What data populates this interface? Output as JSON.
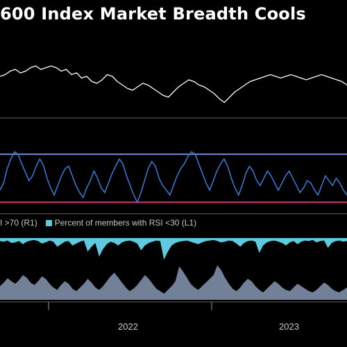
{
  "title": "600 Index Market Breadth Cools",
  "legend": {
    "overbought_label": "I >70 (R1)",
    "oversold_label": "Percent of members with RSI <30 (L1)",
    "oversold_color": "#5fc9dd"
  },
  "x_ticks": [
    "2022",
    "2023"
  ],
  "colors": {
    "index_line": "#ffffff",
    "breadth_line": "#3b7dd8",
    "upper_band": "#7b8bdc",
    "lower_band": "#d9307a",
    "oversold_fill": "#5fc9dd",
    "overbought_fill": "#7e8fa8",
    "separator": "#666666"
  },
  "chart_data": [
    {
      "type": "line",
      "series": [
        {
          "values": [
            100,
            101,
            103,
            104,
            102,
            103,
            105,
            106,
            104,
            105,
            106,
            105,
            103,
            104,
            101,
            102,
            99,
            100,
            97,
            96,
            98,
            101,
            100,
            97,
            95,
            93,
            92,
            94,
            96,
            95,
            93,
            91,
            89,
            88,
            91,
            94,
            96,
            98,
            97,
            95,
            94,
            92,
            90,
            87,
            85,
            88,
            91,
            93,
            95,
            97,
            98,
            99,
            100,
            101,
            100,
            99,
            100,
            101,
            100,
            99,
            98,
            99,
            100,
            101,
            100,
            99,
            98,
            97,
            95
          ]
        }
      ]
    },
    {
      "type": "line",
      "upper_band": 70,
      "lower_band": 30,
      "ylim": [
        25,
        80
      ],
      "series": [
        {
          "values": [
            40,
            46,
            58,
            66,
            72,
            70,
            62,
            55,
            48,
            52,
            60,
            66,
            61,
            50,
            42,
            36,
            44,
            52,
            58,
            60,
            52,
            44,
            38,
            34,
            42,
            48,
            56,
            50,
            42,
            38,
            46,
            54,
            60,
            66,
            62,
            52,
            44,
            36,
            30,
            38,
            48,
            58,
            64,
            60,
            50,
            44,
            40,
            36,
            44,
            52,
            58,
            62,
            68,
            72,
            70,
            62,
            54,
            46,
            40,
            48,
            56,
            62,
            66,
            60,
            50,
            42,
            36,
            44,
            54,
            60,
            56,
            48,
            44,
            50,
            56,
            52,
            46,
            40,
            46,
            52,
            56,
            50,
            44,
            38,
            42,
            48,
            46,
            40,
            36,
            44,
            52,
            48,
            44,
            50,
            46,
            40,
            36
          ]
        }
      ]
    },
    {
      "type": "area",
      "series": [
        {
          "name": "Percent of members with RSI <30 (L1)",
          "values": [
            5,
            6,
            4,
            8,
            7,
            5,
            10,
            6,
            4,
            3,
            5,
            9,
            7,
            4,
            6,
            14,
            10,
            6,
            5,
            12,
            9,
            6,
            4,
            22,
            14,
            8,
            30,
            18,
            10,
            6,
            8,
            12,
            7,
            5,
            4,
            6,
            9,
            20,
            12,
            8,
            6,
            4,
            5,
            35,
            22,
            12,
            8,
            6,
            5,
            4,
            6,
            8,
            10,
            7,
            5,
            4,
            3,
            5,
            7,
            6,
            4,
            5,
            9,
            14,
            8,
            5,
            4,
            6,
            24,
            12,
            7,
            5,
            4,
            6,
            8,
            12,
            7,
            5,
            10,
            6,
            4,
            5,
            3,
            7,
            5,
            4,
            16,
            8,
            5,
            4,
            6,
            5
          ]
        },
        {
          "name": "I >70 (R1)",
          "values": [
            22,
            28,
            35,
            30,
            26,
            32,
            40,
            36,
            28,
            24,
            30,
            38,
            34,
            26,
            20,
            16,
            24,
            30,
            26,
            18,
            14,
            20,
            26,
            34,
            28,
            20,
            16,
            22,
            30,
            38,
            44,
            36,
            28,
            20,
            14,
            18,
            24,
            32,
            40,
            34,
            26,
            18,
            14,
            10,
            16,
            22,
            30,
            54,
            46,
            36,
            26,
            20,
            16,
            22,
            28,
            34,
            40,
            56,
            48,
            36,
            26,
            18,
            14,
            20,
            28,
            34,
            30,
            22,
            16,
            12,
            18,
            24,
            30,
            26,
            20,
            16,
            14,
            20,
            26,
            22,
            18,
            14,
            12,
            16,
            22,
            28,
            24,
            18,
            14,
            12,
            16,
            20
          ]
        }
      ]
    }
  ]
}
